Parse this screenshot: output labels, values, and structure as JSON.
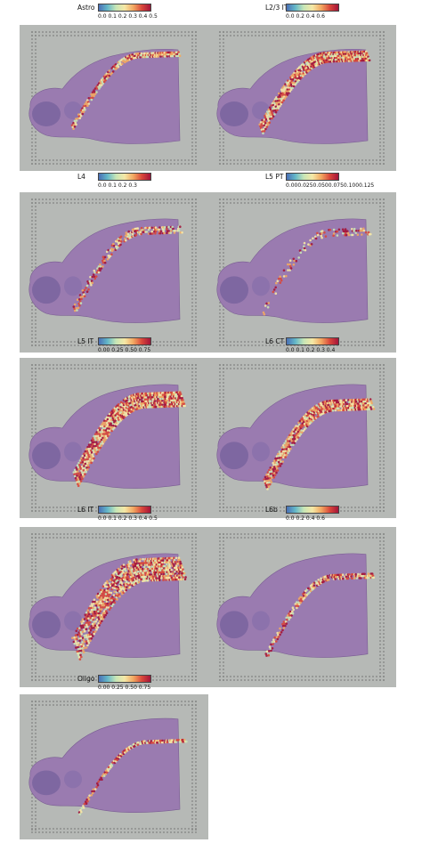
{
  "colors": {
    "panel_bg": "#b6b9b6",
    "tissue": "#9a7bb0",
    "colormap": [
      "#4a6fb5",
      "#63b7c8",
      "#c8e6b6",
      "#f5e8a6",
      "#f2a862",
      "#d9473a",
      "#a4143a"
    ]
  },
  "panels": [
    {
      "label": "Astro",
      "ticks": "0.0 0.1 0.2 0.3 0.4 0.5",
      "band": "outer-thin"
    },
    {
      "label": "L2/3 IT",
      "ticks": "0.0    0.2    0.4    0.6",
      "band": "outer-thick"
    },
    {
      "label": "L4",
      "ticks": "0.0    0.1    0.2    0.3",
      "band": "mid-speckle"
    },
    {
      "label": "L5 PT",
      "ticks": "0.000.0250.0500.0750.1000.125",
      "band": "mid-sparse"
    },
    {
      "label": "L5 IT",
      "ticks": "0.00  0.25  0.50  0.75",
      "band": "mid-thick"
    },
    {
      "label": "L6 CT",
      "ticks": "0.0  0.1  0.2  0.3  0.4",
      "band": "inner-thick"
    },
    {
      "label": "L6 IT",
      "ticks": "0.0 0.1 0.2 0.3 0.4 0.5",
      "band": "wide"
    },
    {
      "label": "L6b",
      "ticks": "0.0    0.2    0.4    0.6",
      "band": "inner-thin"
    },
    {
      "label": "Oligo",
      "ticks": "0.00  0.25  0.50  0.75",
      "band": "tract"
    }
  ]
}
